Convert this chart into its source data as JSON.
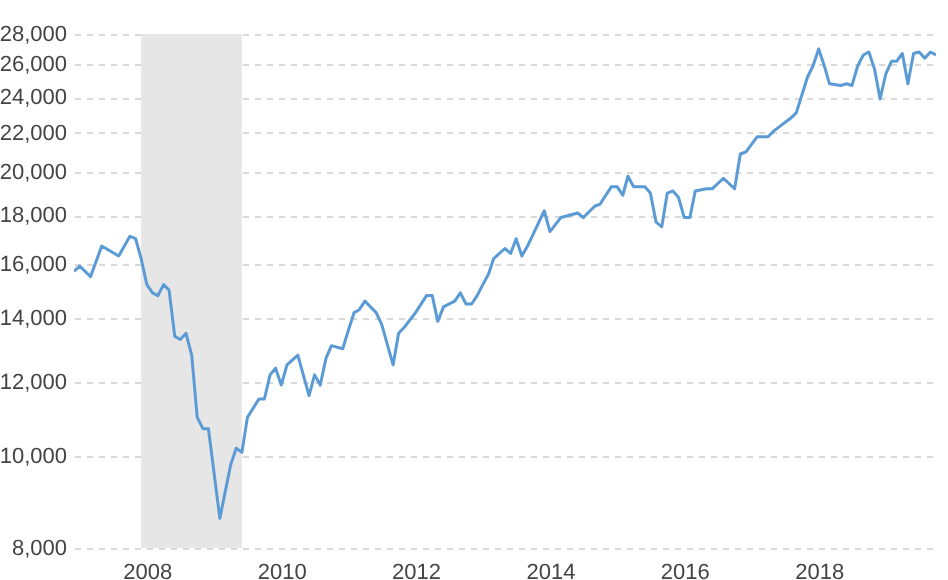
{
  "chart_data": {
    "type": "line",
    "color": "#5b9bd5",
    "x": [
      "2006-12",
      "2007-01",
      "2007-03",
      "2007-05",
      "2007-08",
      "2007-10",
      "2007-11",
      "2007-12",
      "2008-01",
      "2008-02",
      "2008-03",
      "2008-04",
      "2008-05",
      "2008-06",
      "2008-07",
      "2008-08",
      "2008-09",
      "2008-10",
      "2008-11",
      "2008-12",
      "2009-02",
      "2009-04",
      "2009-05",
      "2009-06",
      "2009-07",
      "2009-09",
      "2009-10",
      "2009-11",
      "2009-12",
      "2010-01",
      "2010-02",
      "2010-04",
      "2010-06",
      "2010-07",
      "2010-08",
      "2010-09",
      "2010-10",
      "2010-12",
      "2011-01",
      "2011-02",
      "2011-03",
      "2011-04",
      "2011-06",
      "2011-07",
      "2011-09",
      "2011-10",
      "2011-11",
      "2012-01",
      "2012-03",
      "2012-04",
      "2012-05",
      "2012-06",
      "2012-08",
      "2012-09",
      "2012-10",
      "2012-11",
      "2012-12",
      "2013-01",
      "2013-02",
      "2013-03",
      "2013-05",
      "2013-06",
      "2013-07",
      "2013-08",
      "2013-09",
      "2013-12",
      "2014-01",
      "2014-03",
      "2014-06",
      "2014-07",
      "2014-09",
      "2014-10",
      "2014-12",
      "2015-01",
      "2015-02",
      "2015-03",
      "2015-04",
      "2015-06",
      "2015-07",
      "2015-08",
      "2015-09",
      "2015-10",
      "2015-11",
      "2015-12",
      "2016-01",
      "2016-02",
      "2016-03",
      "2016-05",
      "2016-06",
      "2016-08",
      "2016-10",
      "2016-11",
      "2016-12",
      "2017-02",
      "2017-04",
      "2017-05",
      "2017-08",
      "2017-09",
      "2017-11",
      "2017-12",
      "2018-01",
      "2018-02",
      "2018-03",
      "2018-05",
      "2018-06",
      "2018-07",
      "2018-08",
      "2018-09",
      "2018-10",
      "2018-11",
      "2018-12",
      "2019-01",
      "2019-02",
      "2019-03",
      "2019-04",
      "2019-05",
      "2019-06",
      "2019-07",
      "2019-08",
      "2019-09",
      "2019-10"
    ],
    "values": [
      15700,
      15900,
      15500,
      16700,
      16300,
      17100,
      17000,
      16200,
      15200,
      14900,
      14800,
      15200,
      15000,
      13400,
      13300,
      13500,
      12800,
      11000,
      10700,
      10700,
      8600,
      9800,
      10200,
      10100,
      11000,
      11500,
      11500,
      12200,
      12400,
      11900,
      12500,
      12800,
      11600,
      12200,
      11900,
      12700,
      13100,
      13000,
      13600,
      14200,
      14300,
      14600,
      14200,
      13800,
      12500,
      13500,
      13700,
      14200,
      14800,
      14800,
      13900,
      14400,
      14600,
      14900,
      14500,
      14500,
      14800,
      15200,
      15600,
      16200,
      16600,
      16400,
      17000,
      16300,
      16700,
      18200,
      17300,
      17900,
      18100,
      17900,
      18400,
      18500,
      19300,
      19300,
      18900,
      19800,
      19300,
      19300,
      19000,
      17700,
      17500,
      19000,
      19100,
      18800,
      17900,
      17900,
      19100,
      19200,
      19200,
      19700,
      19200,
      20900,
      21000,
      21800,
      21800,
      22100,
      22800,
      23100,
      25200,
      25900,
      27000,
      25900,
      24800,
      24700,
      24800,
      24700,
      25900,
      26600,
      26800,
      25700,
      23900,
      25400,
      26200,
      26200,
      26700,
      24800,
      26700,
      26800,
      26400,
      26800,
      26600
    ],
    "xlim": [
      "2006-12",
      "2019-10"
    ],
    "xticks": [
      "2008",
      "2010",
      "2012",
      "2014",
      "2016",
      "2018"
    ],
    "ylim": [
      8000,
      28000
    ],
    "yticks": [
      {
        "value": 8000,
        "label": "8,000"
      },
      {
        "value": 10000,
        "label": "10,000"
      },
      {
        "value": 12000,
        "label": "12,000"
      },
      {
        "value": 14000,
        "label": "14,000"
      },
      {
        "value": 16000,
        "label": "16,000"
      },
      {
        "value": 18000,
        "label": "18,000"
      },
      {
        "value": 20000,
        "label": "20,000"
      },
      {
        "value": 22000,
        "label": "22,000"
      },
      {
        "value": 24000,
        "label": "24,000"
      },
      {
        "value": 26000,
        "label": "26,000"
      },
      {
        "value": 28000,
        "label": "28,000"
      }
    ],
    "log": true,
    "grid": "y",
    "bands": [
      {
        "axis": "x",
        "from": "2007-12",
        "to": "2009-06",
        "color": "#e6e6e6"
      }
    ]
  }
}
